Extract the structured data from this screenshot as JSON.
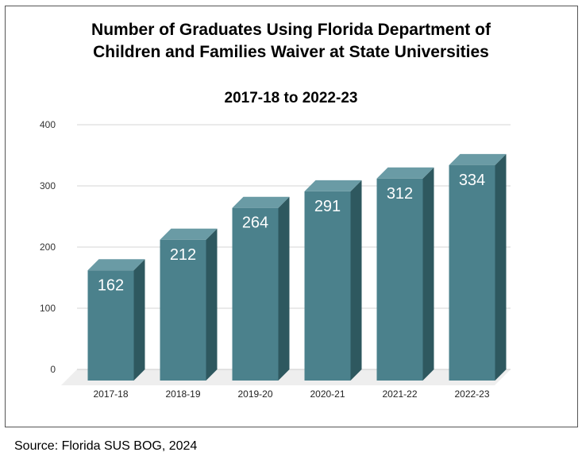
{
  "chart_data": {
    "type": "bar",
    "title": "Number of Graduates Using Florida Department of Children and Families Waiver at State Universities",
    "title_lines": [
      "Number of Graduates Using Florida Department of",
      "Children and Families Waiver at State Universities"
    ],
    "subtitle": "2017-18 to 2022-23",
    "categories": [
      "2017-18",
      "2018-19",
      "2019-20",
      "2020-21",
      "2021-22",
      "2022-23"
    ],
    "values": [
      162,
      212,
      264,
      291,
      312,
      334
    ],
    "xlabel": "",
    "ylabel": "",
    "ylim": [
      0,
      400
    ],
    "yticks": [
      0,
      100,
      200,
      300,
      400
    ],
    "grid": true,
    "legend": "none",
    "colors": {
      "bar_front": "#4b818c",
      "bar_top": "#6a9ba5",
      "bar_side": "#2e585f",
      "floor": "#eeeeee",
      "grid": "#d6d6d6",
      "label": "#ffffff"
    }
  },
  "source": "Source: Florida SUS BOG, 2024"
}
